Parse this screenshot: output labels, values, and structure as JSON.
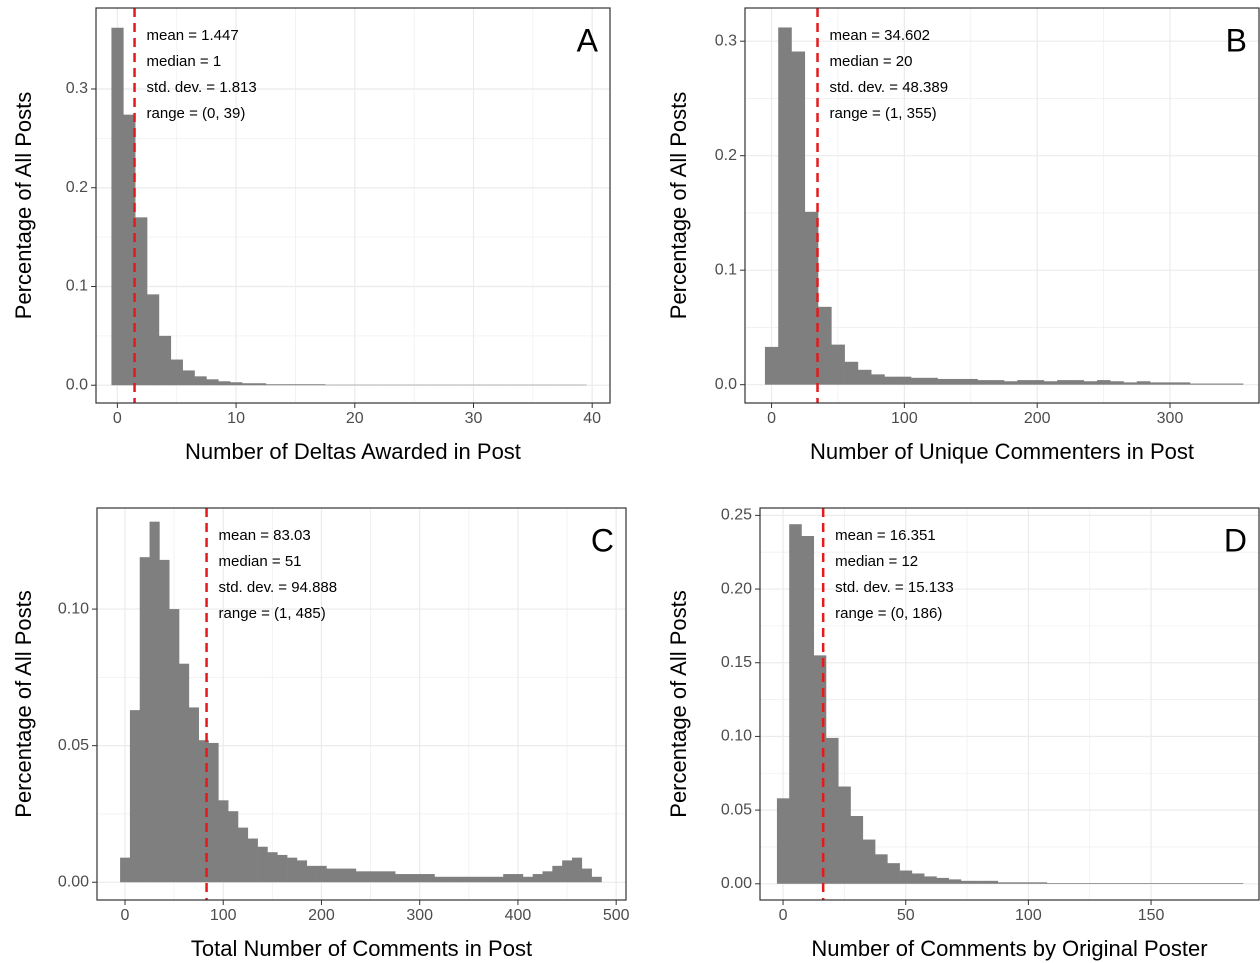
{
  "chart_data": [
    {
      "type": "histogram",
      "panel_label": "A",
      "x_label": "Number of Deltas Awarded in Post",
      "y_label": "Percentage of All Posts",
      "bins": [
        -0.5,
        0.5,
        1.5,
        2.5,
        3.5,
        4.5,
        5.5,
        6.5,
        7.5,
        8.5,
        9.5,
        10.5,
        11.5,
        12.5,
        13.5,
        14.5,
        15.5,
        16.5,
        17.5,
        18.5,
        19.5,
        20.5,
        21.5,
        22.5,
        23.5,
        24.5,
        25.5,
        26.5,
        27.5,
        28.5,
        29.5,
        30.5,
        31.5,
        32.5,
        33.5,
        34.5,
        35.5,
        36.5,
        37.5,
        38.5,
        39.5
      ],
      "values": [
        0.362,
        0.274,
        0.17,
        0.092,
        0.05,
        0.026,
        0.015,
        0.009,
        0.006,
        0.004,
        0.003,
        0.002,
        0.002,
        0.001,
        0.001,
        0.001,
        0.001,
        0.001,
        0.0005,
        0.0005,
        0.0005,
        0.0005,
        0.0005,
        0.0005,
        0.0005,
        0.0005,
        0.0005,
        0.0005,
        0.0005,
        0.0005,
        0.0005,
        0.0005,
        0.0005,
        0.0005,
        0.0005,
        0.0005,
        0.0005,
        0.0005,
        0.0005,
        0.0005
      ],
      "color": "#7f7f7f",
      "mean_line": 1.447,
      "mean_line_color": "#e41a1c",
      "annotations": [
        "mean = 1.447",
        "median = 1",
        "std. dev. = 1.813",
        "range = (0, 39)"
      ],
      "xlim": [
        -1.8,
        41.5
      ],
      "xticks": [
        0,
        10,
        20,
        30,
        40
      ],
      "ylim": [
        -0.018,
        0.382
      ],
      "yticks": [
        {
          "value": 0,
          "label": "0.0"
        },
        0.1,
        0.2,
        0.3
      ],
      "grid": true
    },
    {
      "type": "histogram",
      "panel_label": "B",
      "x_label": "Number of Unique Commenters in Post",
      "y_label": "Percentage of All Posts",
      "bins": [
        -5,
        5,
        15,
        25,
        35,
        45,
        55,
        65,
        75,
        85,
        95,
        105,
        115,
        125,
        135,
        145,
        155,
        165,
        175,
        185,
        195,
        205,
        215,
        225,
        235,
        245,
        255,
        265,
        275,
        285,
        295,
        305,
        315,
        325,
        335,
        345,
        355
      ],
      "values": [
        0.033,
        0.312,
        0.291,
        0.151,
        0.068,
        0.035,
        0.02,
        0.013,
        0.009,
        0.007,
        0.007,
        0.006,
        0.006,
        0.005,
        0.005,
        0.005,
        0.004,
        0.004,
        0.003,
        0.004,
        0.004,
        0.003,
        0.004,
        0.004,
        0.003,
        0.004,
        0.003,
        0.002,
        0.003,
        0.002,
        0.002,
        0.002,
        0.001,
        0.001,
        0.001,
        0.001
      ],
      "color": "#7f7f7f",
      "mean_line": 34.602,
      "mean_line_color": "#e41a1c",
      "annotations": [
        "mean = 34.602",
        "median = 20",
        "std. dev. = 48.389",
        "range = (1, 355)"
      ],
      "xlim": [
        -20,
        367
      ],
      "xticks": [
        0,
        100,
        200,
        300
      ],
      "ylim": [
        -0.016,
        0.329
      ],
      "yticks": [
        {
          "value": 0,
          "label": "0.0"
        },
        0.1,
        0.2,
        0.3
      ],
      "grid": true
    },
    {
      "type": "histogram",
      "panel_label": "C",
      "x_label": "Total Number of Comments in Post",
      "y_label": "Percentage of All Posts",
      "bins": [
        -5,
        5,
        15,
        25,
        35,
        45,
        55,
        65,
        75,
        85,
        95,
        105,
        115,
        125,
        135,
        145,
        155,
        165,
        175,
        185,
        195,
        205,
        215,
        225,
        235,
        245,
        255,
        265,
        275,
        285,
        295,
        305,
        315,
        325,
        335,
        345,
        355,
        365,
        375,
        385,
        395,
        405,
        415,
        425,
        435,
        445,
        455,
        465,
        475,
        485
      ],
      "values": [
        0.009,
        0.063,
        0.119,
        0.132,
        0.118,
        0.1,
        0.08,
        0.064,
        0.052,
        0.051,
        0.03,
        0.026,
        0.02,
        0.016,
        0.013,
        0.011,
        0.01,
        0.009,
        0.008,
        0.006,
        0.006,
        0.005,
        0.005,
        0.005,
        0.004,
        0.004,
        0.004,
        0.004,
        0.003,
        0.003,
        0.003,
        0.003,
        0.002,
        0.002,
        0.002,
        0.002,
        0.002,
        0.002,
        0.002,
        0.003,
        0.003,
        0.002,
        0.003,
        0.004,
        0.006,
        0.008,
        0.009,
        0.005,
        0.002
      ],
      "color": "#7f7f7f",
      "mean_line": 83.03,
      "mean_line_color": "#e41a1c",
      "annotations": [
        "mean = 83.03",
        "median = 51",
        "std. dev. = 94.888",
        "range = (1, 485)"
      ],
      "xlim": [
        -28.5,
        510
      ],
      "xticks": [
        0,
        100,
        200,
        300,
        400,
        500
      ],
      "ylim": [
        -0.0065,
        0.137
      ],
      "yticks": [
        {
          "value": 0,
          "label": "0.00"
        },
        0.05,
        {
          "value": 0.1,
          "label": "0.10"
        }
      ],
      "grid": true
    },
    {
      "type": "histogram",
      "panel_label": "D",
      "x_label": "Number of Comments by Original Poster",
      "y_label": "Percentage of All Posts",
      "bins": [
        -2.5,
        2.5,
        7.5,
        12.5,
        17.5,
        22.5,
        27.5,
        32.5,
        37.5,
        42.5,
        47.5,
        52.5,
        57.5,
        62.5,
        67.5,
        72.5,
        77.5,
        82.5,
        87.5,
        92.5,
        97.5,
        102.5,
        107.5,
        112.5,
        117.5,
        122.5,
        127.5,
        132.5,
        137.5,
        142.5,
        147.5,
        152.5,
        157.5,
        162.5,
        167.5,
        172.5,
        177.5,
        182.5,
        187.5
      ],
      "values": [
        0.058,
        0.244,
        0.236,
        0.155,
        0.099,
        0.066,
        0.046,
        0.03,
        0.02,
        0.014,
        0.009,
        0.007,
        0.005,
        0.004,
        0.003,
        0.002,
        0.002,
        0.002,
        0.001,
        0.001,
        0.001,
        0.001,
        0.0005,
        0.0005,
        0.0005,
        0.0005,
        0.0005,
        0.0005,
        0.0005,
        0.0005,
        0.0005,
        0.0005,
        0.0005,
        0.0005,
        0.0005,
        0.0005,
        0.0005,
        0.0005
      ],
      "color": "#7f7f7f",
      "mean_line": 16.351,
      "mean_line_color": "#e41a1c",
      "annotations": [
        "mean = 16.351",
        "median = 12",
        "std. dev. = 15.133",
        "range = (0, 186)"
      ],
      "xlim": [
        -9.4,
        194
      ],
      "xticks": [
        0,
        50,
        100,
        150
      ],
      "ylim": [
        -0.011,
        0.255
      ],
      "yticks": [
        {
          "value": 0,
          "label": "0.00"
        },
        0.05,
        {
          "value": 0.1,
          "label": "0.10"
        },
        0.15,
        {
          "value": 0.2,
          "label": "0.20"
        },
        0.25
      ],
      "grid": true
    }
  ]
}
